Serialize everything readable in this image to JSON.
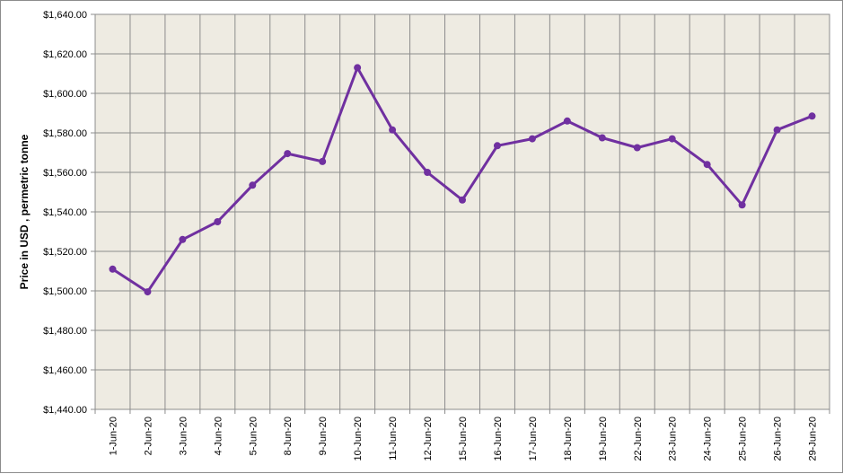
{
  "chart_data": {
    "type": "line",
    "ylabel": "Price in USD , permetric tonne",
    "xlabel": "",
    "title": "",
    "categories": [
      "1-Jun-20",
      "2-Jun-20",
      "3-Jun-20",
      "4-Jun-20",
      "5-Jun-20",
      "8-Jun-20",
      "9-Jun-20",
      "10-Jun-20",
      "11-Jun-20",
      "12-Jun-20",
      "15-Jun-20",
      "16-Jun-20",
      "17-Jun-20",
      "18-Jun-20",
      "19-Jun-20",
      "22-Jun-20",
      "23-Jun-20",
      "24-Jun-20",
      "25-Jun-20",
      "26-Jun-20",
      "29-Jun-20"
    ],
    "series": [
      {
        "values": [
          1511,
          1499.5,
          1526,
          1535,
          1553.5,
          1569.5,
          1565.5,
          1613,
          1581.5,
          1560,
          1546,
          1573.5,
          1577,
          1586,
          1577.5,
          1572.5,
          1577,
          1564,
          1543.5,
          1581.5,
          1588.5
        ],
        "color": "#7030a0"
      }
    ],
    "ylim": [
      1440,
      1640
    ],
    "yticks": [
      1440,
      1460,
      1480,
      1500,
      1520,
      1540,
      1560,
      1580,
      1600,
      1620,
      1640
    ],
    "ytick_labels": [
      "$1,440.00",
      "$1,460.00",
      "$1,480.00",
      "$1,500.00",
      "$1,520.00",
      "$1,540.00",
      "$1,560.00",
      "$1,580.00",
      "$1,600.00",
      "$1,620.00",
      "$1,640.00"
    ],
    "grid": true,
    "legend": "none",
    "plot_background": "#eeebe2",
    "grid_color": "#8c8c8c"
  }
}
